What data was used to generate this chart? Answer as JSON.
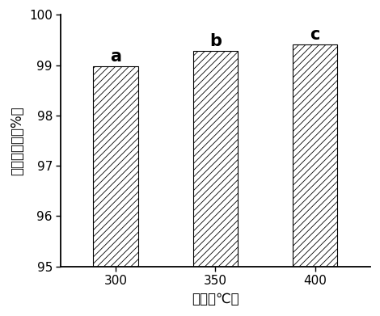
{
  "categories": [
    "300",
    "350",
    "400"
  ],
  "values": [
    98.98,
    99.28,
    99.42
  ],
  "bar_bottom": 95,
  "labels": [
    "a",
    "b",
    "c"
  ],
  "bar_color": "#ffffff",
  "bar_edgecolor": "#000000",
  "hatch": "////",
  "xlabel": "温度（℃）",
  "ylabel": "汞的挥发率（%）",
  "ylim": [
    95,
    100
  ],
  "yticks": [
    95,
    96,
    97,
    98,
    99,
    100
  ],
  "xlabel_fontsize": 12,
  "ylabel_fontsize": 12,
  "tick_fontsize": 11,
  "label_fontsize": 15,
  "bar_width": 0.45,
  "background_color": "#ffffff",
  "hatch_linewidth": 0.6
}
